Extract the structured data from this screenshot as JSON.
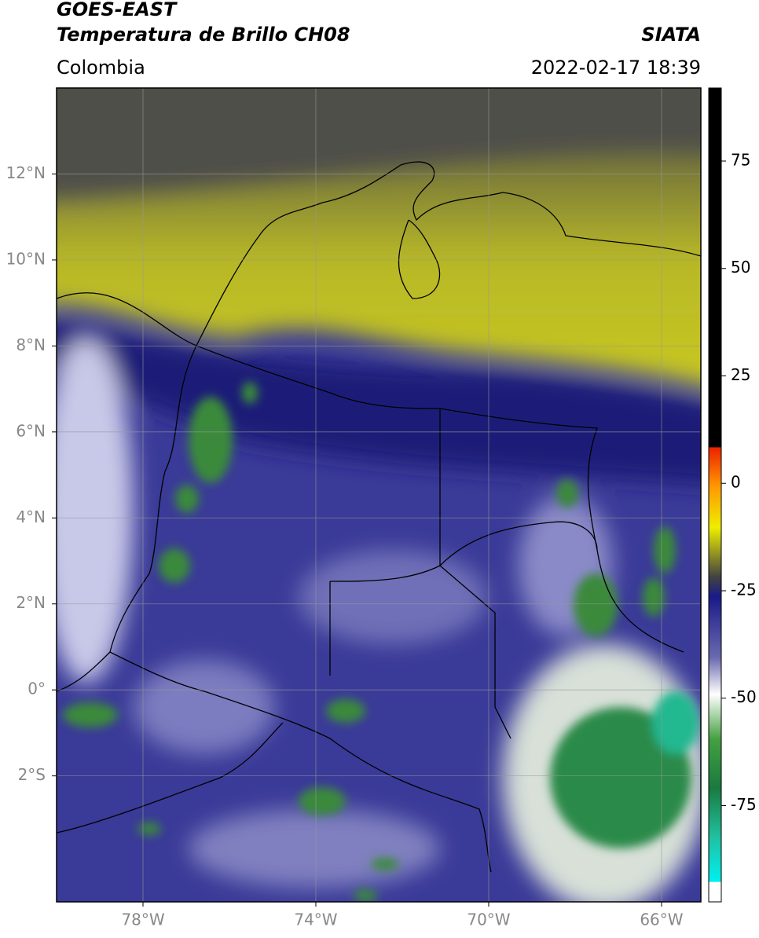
{
  "header": {
    "title": "GOES-EAST",
    "subtitle": "Temperatura de Brillo CH08",
    "source": "SIATA",
    "region": "Colombia",
    "datetime": "2022-02-17 18:39"
  },
  "map": {
    "xlim": [
      -80,
      -65.09
    ],
    "ylim": [
      -4.93,
      14
    ],
    "xticks": [
      {
        "value": -78,
        "label": "78°W"
      },
      {
        "value": -74,
        "label": "74°W"
      },
      {
        "value": -70,
        "label": "70°W"
      },
      {
        "value": -66,
        "label": "66°W"
      }
    ],
    "yticks": [
      {
        "value": 12,
        "label": "12°N"
      },
      {
        "value": 10,
        "label": "10°N"
      },
      {
        "value": 8,
        "label": "8°N"
      },
      {
        "value": 6,
        "label": "6°N"
      },
      {
        "value": 4,
        "label": "4°N"
      },
      {
        "value": 2,
        "label": "2°N"
      },
      {
        "value": 0,
        "label": "0°"
      },
      {
        "value": -2,
        "label": "2°S"
      }
    ],
    "grid": true
  },
  "colorbar": {
    "lim": [
      -97.4,
      92
    ],
    "ticks": [
      75,
      50,
      25,
      0,
      -25,
      -50,
      -75
    ]
  }
}
